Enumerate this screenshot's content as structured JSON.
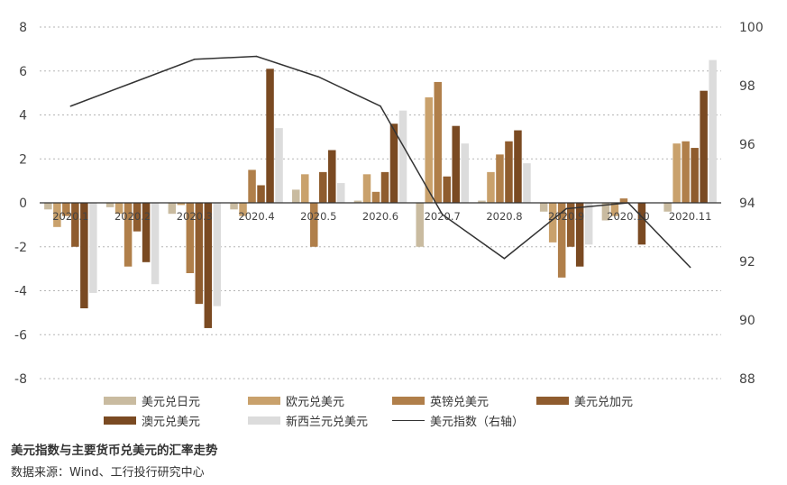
{
  "chart_data": {
    "type": "bar",
    "categories": [
      "2020.1",
      "2020.2",
      "2020.3",
      "2020.4",
      "2020.5",
      "2020.6",
      "2020.7",
      "2020.8",
      "2020.9",
      "2020.10",
      "2020.11"
    ],
    "series": [
      {
        "name": "美元兑日元",
        "color": "#c9bba0",
        "values": [
          -0.3,
          -0.2,
          -0.5,
          -0.3,
          0.6,
          0.1,
          -2.0,
          0.1,
          -0.4,
          -0.8,
          -0.4
        ]
      },
      {
        "name": "欧元兑美元",
        "color": "#c9a16c",
        "values": [
          -1.1,
          -0.5,
          -0.1,
          -0.6,
          1.3,
          1.3,
          4.8,
          1.4,
          -1.8,
          -0.6,
          2.7
        ]
      },
      {
        "name": "英镑兑美元",
        "color": "#b07f4a",
        "values": [
          -0.6,
          -2.9,
          -3.2,
          1.5,
          -2.0,
          0.5,
          5.5,
          2.2,
          -3.4,
          0.2,
          2.8
        ]
      },
      {
        "name": "美元兑加元",
        "color": "#8f5c2e",
        "values": [
          -2.0,
          -1.3,
          -4.6,
          0.8,
          1.4,
          1.4,
          1.2,
          2.8,
          -2.0,
          0.0,
          2.5
        ]
      },
      {
        "name": "澳元兑美元",
        "color": "#7a4a22",
        "values": [
          -4.8,
          -2.7,
          -5.7,
          6.1,
          2.4,
          3.6,
          3.5,
          3.3,
          -2.9,
          -1.9,
          5.1
        ]
      },
      {
        "name": "新西兰元兑美元",
        "color": "#dcdcdc",
        "values": [
          -4.1,
          -3.7,
          -4.7,
          3.4,
          0.9,
          4.2,
          2.7,
          1.8,
          -1.9,
          0.0,
          6.5
        ]
      }
    ],
    "line": {
      "name": "美元指数（右轴）",
      "color": "#333333",
      "values": [
        97.3,
        98.1,
        98.9,
        99.0,
        98.3,
        97.3,
        93.6,
        92.1,
        93.8,
        94.0,
        91.8
      ]
    },
    "y_left": {
      "min": -8,
      "max": 8,
      "ticks": [
        "8",
        "6",
        "4",
        "2",
        "0",
        "-2",
        "-4",
        "-6",
        "-8"
      ]
    },
    "y_right": {
      "min": 88,
      "max": 100,
      "ticks": [
        "100",
        "98",
        "96",
        "94",
        "92",
        "90",
        "88"
      ]
    },
    "grid": true,
    "legend_position": "bottom"
  },
  "caption": "美元指数与主要货币兑美元的汇率走势",
  "source": "数据来源：Wind、工行投行研究中心"
}
